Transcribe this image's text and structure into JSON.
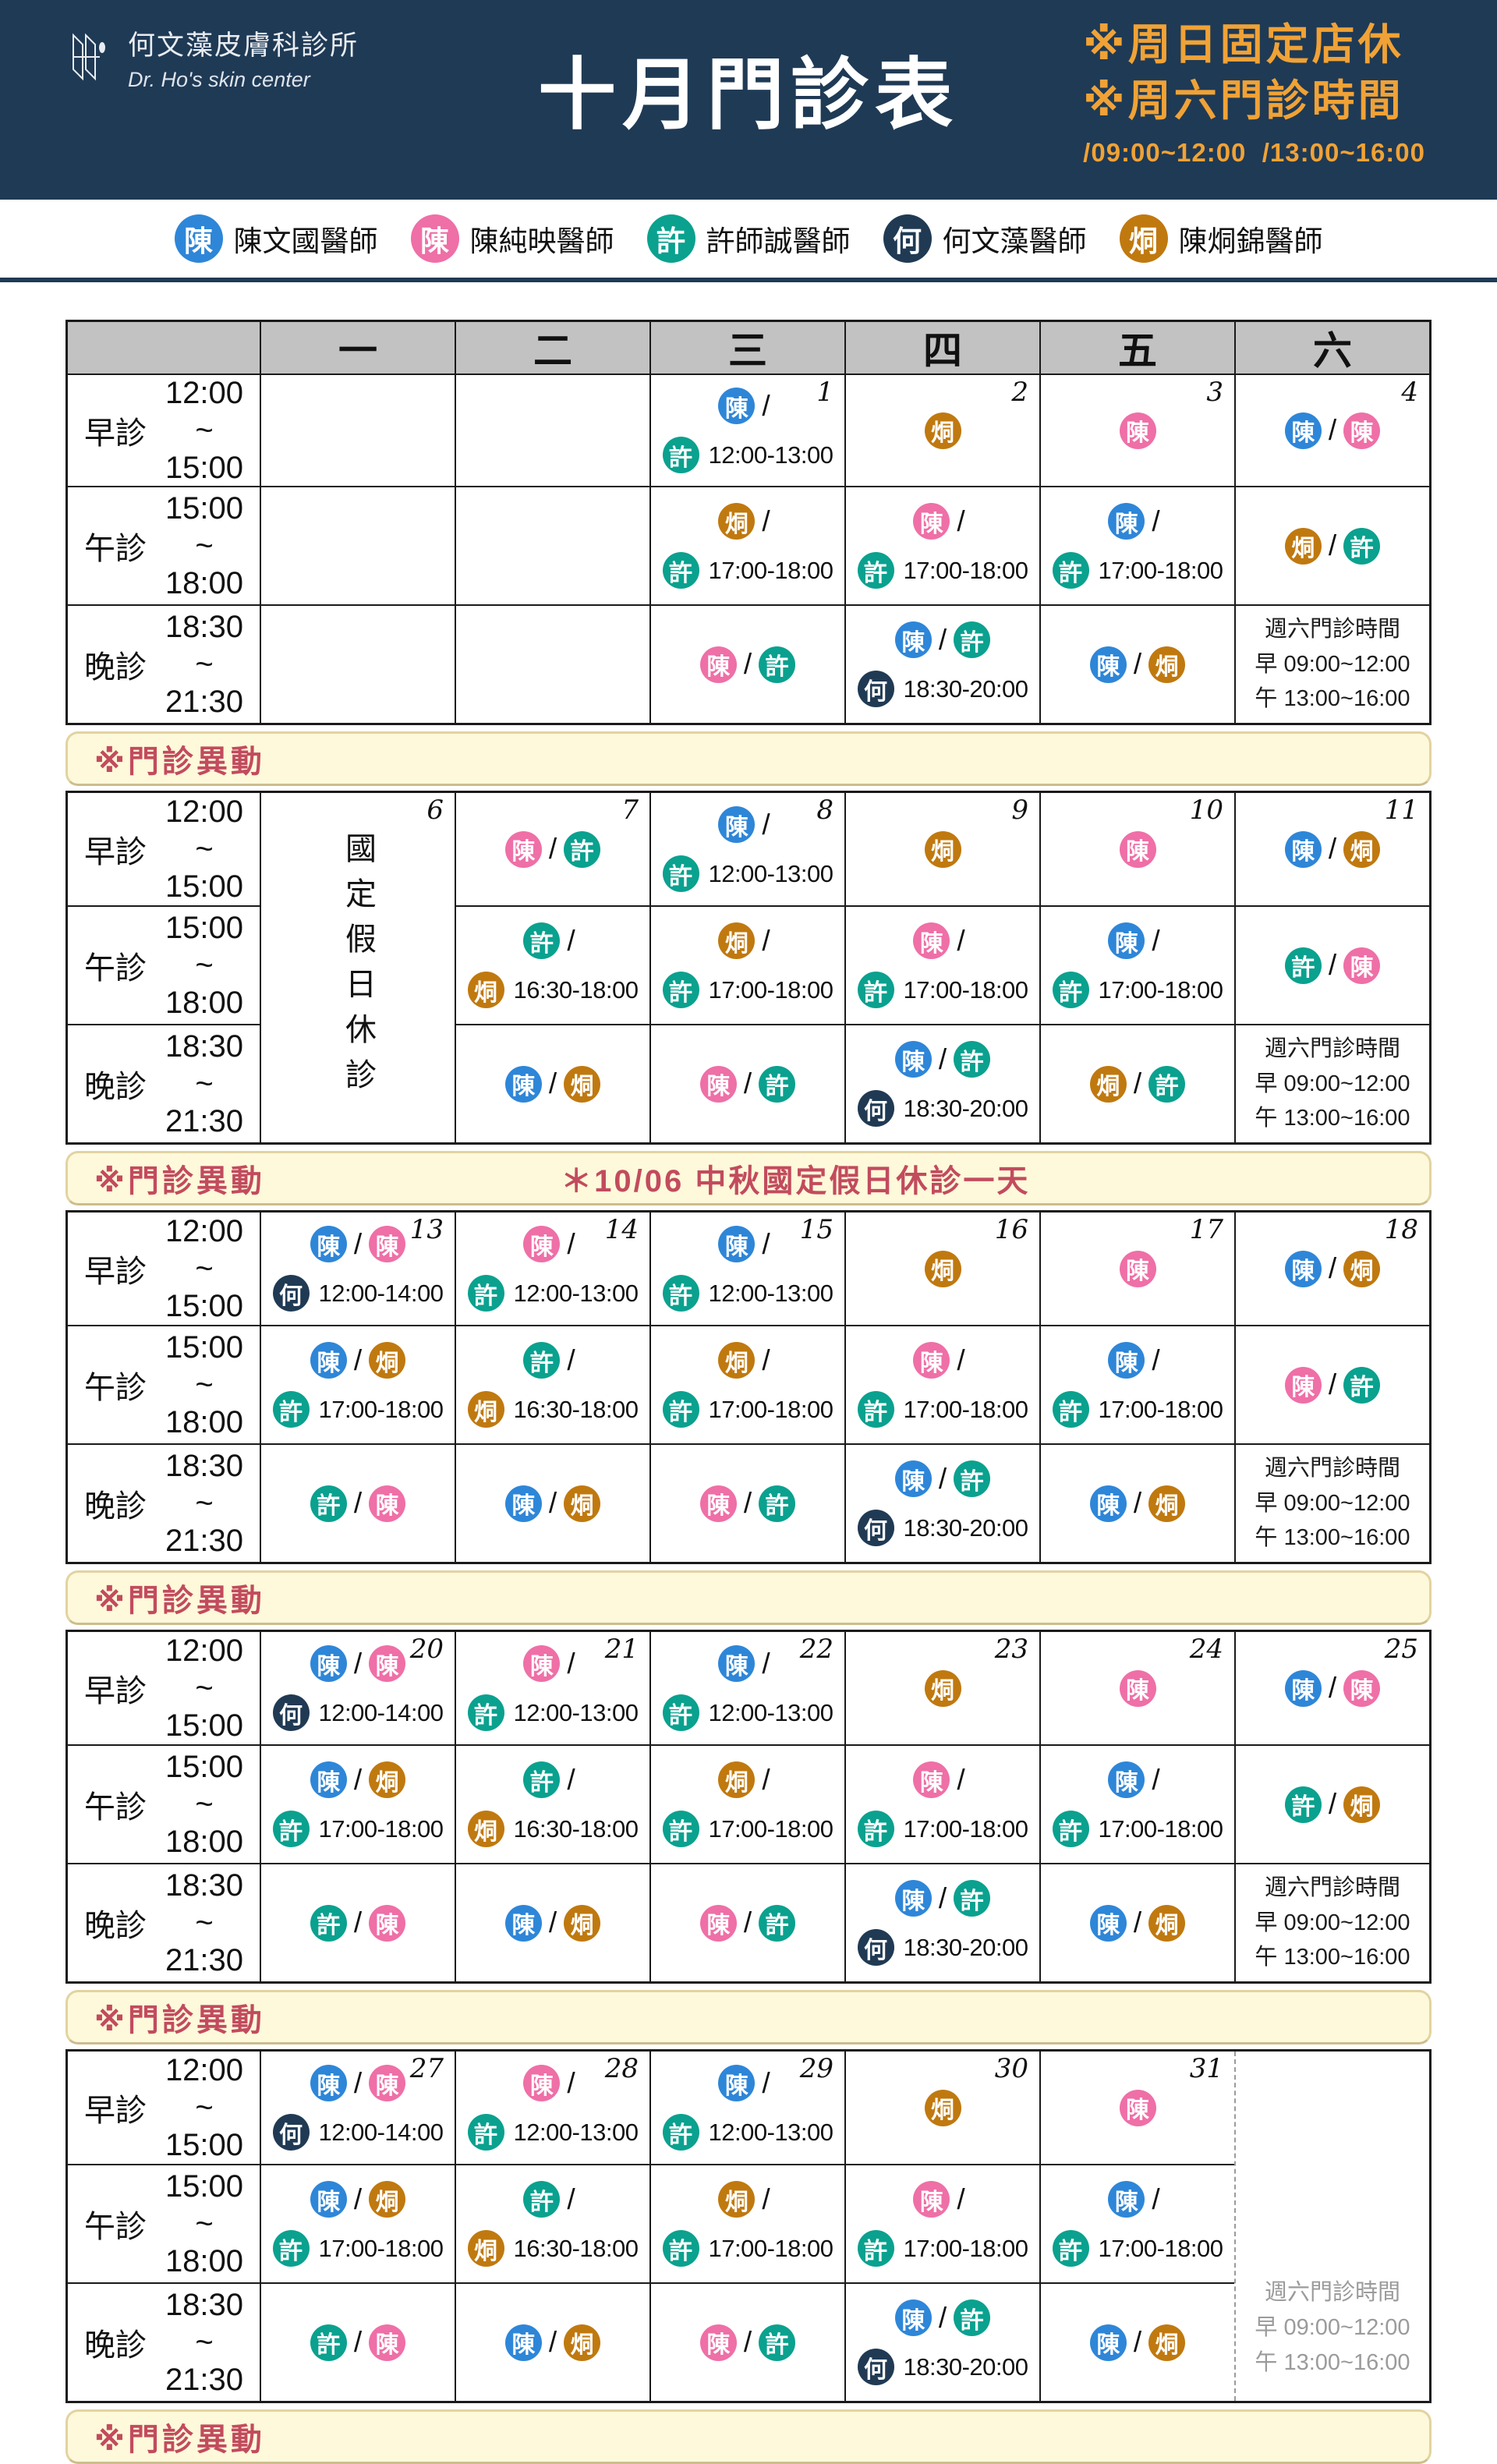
{
  "header": {
    "clinic_name": "何文藻皮膚科診所",
    "clinic_name_en": "Dr. Ho's skin center",
    "title": "十月門診表",
    "note1": "※周日固定店休",
    "note2": "※周六門診時間",
    "note_times": "/09:00~12:00  /13:00~16:00"
  },
  "colors": {
    "blue": "#2e86d8",
    "pink": "#ef6fa7",
    "teal": "#0aa18f",
    "navy": "#203a54",
    "orange": "#c0790f"
  },
  "badge_chars": {
    "blue": "陳",
    "pink": "陳",
    "teal": "許",
    "navy": "何",
    "orange": "烔"
  },
  "legend": [
    {
      "color": "blue",
      "badge": "陳",
      "name": "陳文國醫師"
    },
    {
      "color": "pink",
      "badge": "陳",
      "name": "陳純映醫師"
    },
    {
      "color": "teal",
      "badge": "許",
      "name": "許師誠醫師"
    },
    {
      "color": "navy",
      "badge": "何",
      "name": "何文藻醫師"
    },
    {
      "color": "orange",
      "badge": "烔",
      "name": "陳烔錦醫師"
    }
  ],
  "day_headers": [
    "一",
    "二",
    "三",
    "四",
    "五",
    "六"
  ],
  "sessions": [
    {
      "name": "早診",
      "start": "12:00",
      "mid": "~",
      "end": "15:00"
    },
    {
      "name": "午診",
      "start": "15:00",
      "mid": "~",
      "end": "18:00"
    },
    {
      "name": "晚診",
      "start": "18:30",
      "mid": "~",
      "end": "21:30"
    }
  ],
  "slash_separator": "/",
  "sat_note": {
    "title": "週六門診時間",
    "morning": "早 09:00~12:00",
    "afternoon": "午 13:00~16:00"
  },
  "change_bar_label": "※門診異動",
  "holiday_cell_text": "國定假日休診",
  "weeks": [
    {
      "bar_note": "",
      "days": [
        {
          "num": "",
          "cells": [
            {
              "t": "empty"
            },
            {
              "t": "empty"
            },
            {
              "t": "empty"
            }
          ]
        },
        {
          "num": "",
          "cells": [
            {
              "t": "empty"
            },
            {
              "t": "empty"
            },
            {
              "t": "empty"
            }
          ]
        },
        {
          "num": "1",
          "cells": [
            {
              "t": "slash",
              "b": [
                "blue"
              ],
              "b2": "teal",
              "time": "12:00-13:00"
            },
            {
              "t": "slash",
              "b": [
                "orange"
              ],
              "b2": "teal",
              "time": "17:00-18:00"
            },
            {
              "t": "pair",
              "b": [
                "pink",
                "teal"
              ]
            }
          ]
        },
        {
          "num": "2",
          "cells": [
            {
              "t": "single",
              "b": [
                "orange"
              ]
            },
            {
              "t": "slash",
              "b": [
                "pink"
              ],
              "b2": "teal",
              "time": "17:00-18:00"
            },
            {
              "t": "pair2",
              "b": [
                "blue",
                "teal"
              ],
              "b2": "navy",
              "time": "18:30-20:00"
            }
          ]
        },
        {
          "num": "3",
          "cells": [
            {
              "t": "single",
              "b": [
                "pink"
              ]
            },
            {
              "t": "slash",
              "b": [
                "blue"
              ],
              "b2": "teal",
              "time": "17:00-18:00"
            },
            {
              "t": "pair",
              "b": [
                "blue",
                "orange"
              ]
            }
          ]
        },
        {
          "num": "4",
          "cells": [
            {
              "t": "pair",
              "b": [
                "blue",
                "pink"
              ]
            },
            {
              "t": "pair",
              "b": [
                "orange",
                "teal"
              ]
            },
            {
              "t": "satnote"
            }
          ]
        }
      ]
    },
    {
      "bar_note": "＊10/06 中秋國定假日休診一天",
      "days": [
        {
          "num": "6",
          "merged": "holiday"
        },
        {
          "num": "7",
          "cells": [
            {
              "t": "pair",
              "b": [
                "pink",
                "teal"
              ]
            },
            {
              "t": "slash",
              "b": [
                "teal"
              ],
              "b2": "orange",
              "time": "16:30-18:00"
            },
            {
              "t": "pair",
              "b": [
                "blue",
                "orange"
              ]
            }
          ]
        },
        {
          "num": "8",
          "cells": [
            {
              "t": "slash",
              "b": [
                "blue"
              ],
              "b2": "teal",
              "time": "12:00-13:00"
            },
            {
              "t": "slash",
              "b": [
                "orange"
              ],
              "b2": "teal",
              "time": "17:00-18:00"
            },
            {
              "t": "pair",
              "b": [
                "pink",
                "teal"
              ]
            }
          ]
        },
        {
          "num": "9",
          "cells": [
            {
              "t": "single",
              "b": [
                "orange"
              ]
            },
            {
              "t": "slash",
              "b": [
                "pink"
              ],
              "b2": "teal",
              "time": "17:00-18:00"
            },
            {
              "t": "pair2",
              "b": [
                "blue",
                "teal"
              ],
              "b2": "navy",
              "time": "18:30-20:00"
            }
          ]
        },
        {
          "num": "10",
          "cells": [
            {
              "t": "single",
              "b": [
                "pink"
              ]
            },
            {
              "t": "slash",
              "b": [
                "blue"
              ],
              "b2": "teal",
              "time": "17:00-18:00"
            },
            {
              "t": "pair",
              "b": [
                "orange",
                "teal"
              ]
            }
          ]
        },
        {
          "num": "11",
          "cells": [
            {
              "t": "pair",
              "b": [
                "blue",
                "orange"
              ]
            },
            {
              "t": "pair",
              "b": [
                "teal",
                "pink"
              ]
            },
            {
              "t": "satnote"
            }
          ]
        }
      ]
    },
    {
      "bar_note": "",
      "days": [
        {
          "num": "13",
          "cells": [
            {
              "t": "pair2",
              "b": [
                "blue",
                "pink"
              ],
              "b2": "navy",
              "time": "12:00-14:00"
            },
            {
              "t": "pair2",
              "b": [
                "blue",
                "orange"
              ],
              "b2": "teal",
              "time": "17:00-18:00"
            },
            {
              "t": "pair",
              "b": [
                "teal",
                "pink"
              ]
            }
          ]
        },
        {
          "num": "14",
          "cells": [
            {
              "t": "slash",
              "b": [
                "pink"
              ],
              "b2": "teal",
              "time": "12:00-13:00"
            },
            {
              "t": "slash",
              "b": [
                "teal"
              ],
              "b2": "orange",
              "time": "16:30-18:00"
            },
            {
              "t": "pair",
              "b": [
                "blue",
                "orange"
              ]
            }
          ]
        },
        {
          "num": "15",
          "cells": [
            {
              "t": "slash",
              "b": [
                "blue"
              ],
              "b2": "teal",
              "time": "12:00-13:00"
            },
            {
              "t": "slash",
              "b": [
                "orange"
              ],
              "b2": "teal",
              "time": "17:00-18:00"
            },
            {
              "t": "pair",
              "b": [
                "pink",
                "teal"
              ]
            }
          ]
        },
        {
          "num": "16",
          "cells": [
            {
              "t": "single",
              "b": [
                "orange"
              ]
            },
            {
              "t": "slash",
              "b": [
                "pink"
              ],
              "b2": "teal",
              "time": "17:00-18:00"
            },
            {
              "t": "pair2",
              "b": [
                "blue",
                "teal"
              ],
              "b2": "navy",
              "time": "18:30-20:00"
            }
          ]
        },
        {
          "num": "17",
          "cells": [
            {
              "t": "single",
              "b": [
                "pink"
              ]
            },
            {
              "t": "slash",
              "b": [
                "blue"
              ],
              "b2": "teal",
              "time": "17:00-18:00"
            },
            {
              "t": "pair",
              "b": [
                "blue",
                "orange"
              ]
            }
          ]
        },
        {
          "num": "18",
          "cells": [
            {
              "t": "pair",
              "b": [
                "blue",
                "orange"
              ]
            },
            {
              "t": "pair",
              "b": [
                "pink",
                "teal"
              ]
            },
            {
              "t": "satnote"
            }
          ]
        }
      ]
    },
    {
      "bar_note": "",
      "days": [
        {
          "num": "20",
          "cells": [
            {
              "t": "pair2",
              "b": [
                "blue",
                "pink"
              ],
              "b2": "navy",
              "time": "12:00-14:00"
            },
            {
              "t": "pair2",
              "b": [
                "blue",
                "orange"
              ],
              "b2": "teal",
              "time": "17:00-18:00"
            },
            {
              "t": "pair",
              "b": [
                "teal",
                "pink"
              ]
            }
          ]
        },
        {
          "num": "21",
          "cells": [
            {
              "t": "slash",
              "b": [
                "pink"
              ],
              "b2": "teal",
              "time": "12:00-13:00"
            },
            {
              "t": "slash",
              "b": [
                "teal"
              ],
              "b2": "orange",
              "time": "16:30-18:00"
            },
            {
              "t": "pair",
              "b": [
                "blue",
                "orange"
              ]
            }
          ]
        },
        {
          "num": "22",
          "cells": [
            {
              "t": "slash",
              "b": [
                "blue"
              ],
              "b2": "teal",
              "time": "12:00-13:00"
            },
            {
              "t": "slash",
              "b": [
                "orange"
              ],
              "b2": "teal",
              "time": "17:00-18:00"
            },
            {
              "t": "pair",
              "b": [
                "pink",
                "teal"
              ]
            }
          ]
        },
        {
          "num": "23",
          "cells": [
            {
              "t": "single",
              "b": [
                "orange"
              ]
            },
            {
              "t": "slash",
              "b": [
                "pink"
              ],
              "b2": "teal",
              "time": "17:00-18:00"
            },
            {
              "t": "pair2",
              "b": [
                "blue",
                "teal"
              ],
              "b2": "navy",
              "time": "18:30-20:00"
            }
          ]
        },
        {
          "num": "24",
          "cells": [
            {
              "t": "single",
              "b": [
                "pink"
              ]
            },
            {
              "t": "slash",
              "b": [
                "blue"
              ],
              "b2": "teal",
              "time": "17:00-18:00"
            },
            {
              "t": "pair",
              "b": [
                "blue",
                "orange"
              ]
            }
          ]
        },
        {
          "num": "25",
          "cells": [
            {
              "t": "pair",
              "b": [
                "blue",
                "pink"
              ]
            },
            {
              "t": "pair",
              "b": [
                "teal",
                "orange"
              ]
            },
            {
              "t": "satnote"
            }
          ]
        }
      ]
    },
    {
      "bar_note": "",
      "days": [
        {
          "num": "27",
          "cells": [
            {
              "t": "pair2",
              "b": [
                "blue",
                "pink"
              ],
              "b2": "navy",
              "time": "12:00-14:00"
            },
            {
              "t": "pair2",
              "b": [
                "blue",
                "orange"
              ],
              "b2": "teal",
              "time": "17:00-18:00"
            },
            {
              "t": "pair",
              "b": [
                "teal",
                "pink"
              ]
            }
          ]
        },
        {
          "num": "28",
          "cells": [
            {
              "t": "slash",
              "b": [
                "pink"
              ],
              "b2": "teal",
              "time": "12:00-13:00"
            },
            {
              "t": "slash",
              "b": [
                "teal"
              ],
              "b2": "orange",
              "time": "16:30-18:00"
            },
            {
              "t": "pair",
              "b": [
                "blue",
                "orange"
              ]
            }
          ]
        },
        {
          "num": "29",
          "cells": [
            {
              "t": "slash",
              "b": [
                "blue"
              ],
              "b2": "teal",
              "time": "12:00-13:00"
            },
            {
              "t": "slash",
              "b": [
                "orange"
              ],
              "b2": "teal",
              "time": "17:00-18:00"
            },
            {
              "t": "pair",
              "b": [
                "pink",
                "teal"
              ]
            }
          ]
        },
        {
          "num": "30",
          "cells": [
            {
              "t": "single",
              "b": [
                "orange"
              ]
            },
            {
              "t": "slash",
              "b": [
                "pink"
              ],
              "b2": "teal",
              "time": "17:00-18:00"
            },
            {
              "t": "pair2",
              "b": [
                "blue",
                "teal"
              ],
              "b2": "navy",
              "time": "18:30-20:00"
            }
          ]
        },
        {
          "num": "31",
          "cells": [
            {
              "t": "single",
              "b": [
                "pink"
              ]
            },
            {
              "t": "slash",
              "b": [
                "blue"
              ],
              "b2": "teal",
              "time": "17:00-18:00"
            },
            {
              "t": "pair",
              "b": [
                "blue",
                "orange"
              ]
            }
          ]
        },
        {
          "num": "",
          "merged": "satgray"
        }
      ]
    }
  ]
}
